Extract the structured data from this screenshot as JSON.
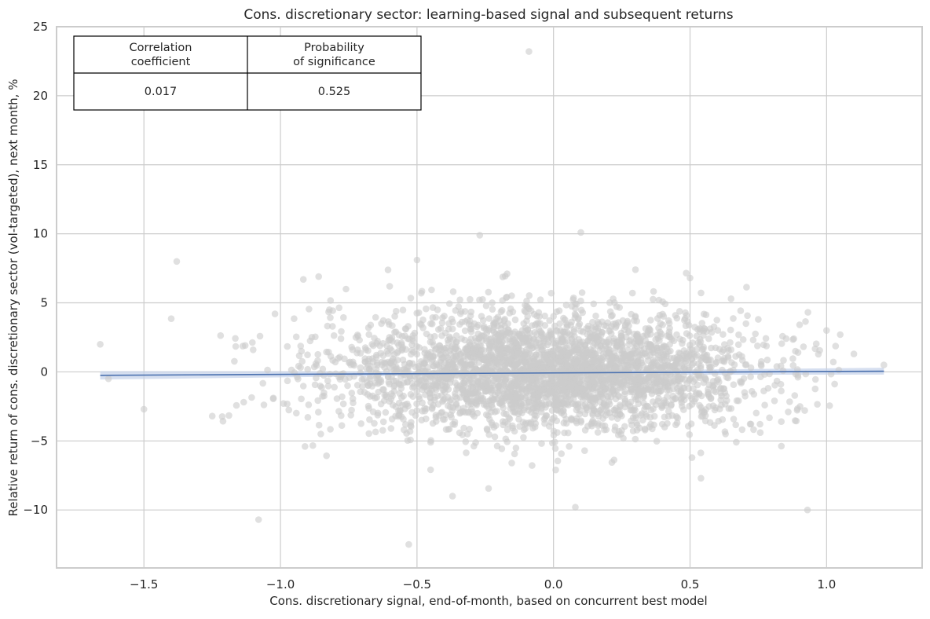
{
  "chart_data": {
    "type": "scatter",
    "title": "Cons. discretionary sector: learning-based signal and subsequent returns",
    "xlabel": "Cons. discretionary signal, end-of-month, based on concurrent best model",
    "ylabel": "Relative return of cons. discretionary sector (vol-targeted), next month, %",
    "xlim": [
      -1.82,
      1.35
    ],
    "ylim": [
      -14.2,
      25.0
    ],
    "x_ticks": [
      -1.5,
      -1.0,
      -0.5,
      0.0,
      0.5,
      1.0
    ],
    "x_tick_labels": [
      "−1.5",
      "−1.0",
      "−0.5",
      "0.0",
      "0.5",
      "1.0"
    ],
    "y_ticks": [
      -10,
      -5,
      0,
      5,
      10,
      15,
      20,
      25
    ],
    "y_tick_labels": [
      "−10",
      "−5",
      "0",
      "5",
      "10",
      "15",
      "20",
      "25"
    ],
    "grid": true,
    "point_color": "#cccccc",
    "line_color": "#4c72b0",
    "band_color": "#c5d2ea",
    "regression": {
      "x_start": -1.66,
      "y_start": -0.25,
      "x_end": 1.21,
      "y_end": 0.05,
      "ci_start": 0.3,
      "ci_mid": 0.12,
      "ci_end": 0.25
    },
    "cloud": {
      "count": 3300,
      "x_mean": -0.02,
      "x_sd": 0.38,
      "y_mean": 0.0,
      "y_sd": 2.1
    },
    "outliers": [
      [
        -0.09,
        23.2
      ],
      [
        -0.27,
        9.9
      ],
      [
        0.1,
        10.1
      ],
      [
        -1.38,
        8.0
      ],
      [
        -1.4,
        3.85
      ],
      [
        -1.66,
        2.0
      ],
      [
        -1.63,
        -0.5
      ],
      [
        -1.5,
        -2.7
      ],
      [
        -1.25,
        -3.2
      ],
      [
        -1.08,
        -10.7
      ],
      [
        -0.53,
        -12.5
      ],
      [
        0.93,
        -10.0
      ],
      [
        1.0,
        3.0
      ],
      [
        1.05,
        2.7
      ],
      [
        0.92,
        -2.8
      ],
      [
        1.21,
        0.5
      ],
      [
        -1.1,
        1.6
      ],
      [
        -0.86,
        6.9
      ],
      [
        -0.5,
        8.1
      ],
      [
        0.63,
        -4.5
      ],
      [
        -0.37,
        -9.0
      ],
      [
        0.08,
        -9.8
      ],
      [
        0.5,
        6.8
      ],
      [
        -0.76,
        6.0
      ],
      [
        -0.17,
        7.1
      ],
      [
        0.3,
        7.4
      ],
      [
        -0.6,
        6.2
      ],
      [
        0.65,
        5.3
      ],
      [
        -0.91,
        -5.4
      ],
      [
        -0.45,
        -5.1
      ],
      [
        0.54,
        -7.7
      ],
      [
        0.88,
        2.4
      ],
      [
        1.1,
        1.3
      ],
      [
        -1.02,
        4.2
      ],
      [
        0.75,
        3.8
      ]
    ],
    "stats_table": {
      "headers": [
        "Correlation\ncoefficient",
        "Probability\nof significance"
      ],
      "values": [
        "0.017",
        "0.525"
      ]
    }
  }
}
